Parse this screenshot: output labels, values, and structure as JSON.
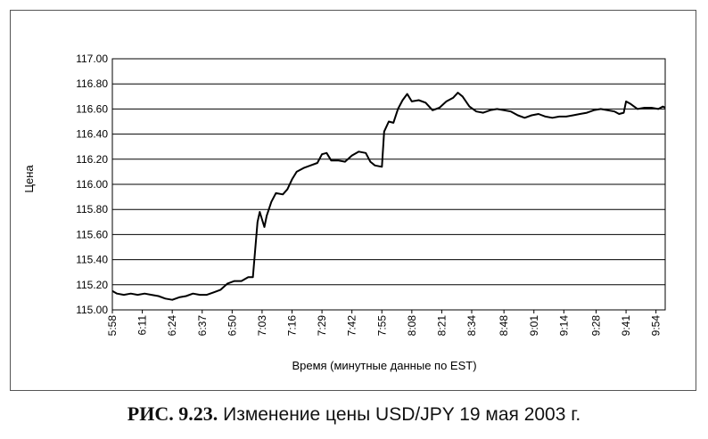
{
  "chart_data": {
    "type": "line",
    "title": "",
    "xlabel": "Время (минутные данные по EST)",
    "ylabel": "Цена",
    "ylim": [
      115.0,
      117.0
    ],
    "xlim": [
      "5:58",
      "9:58"
    ],
    "grid": "horizontal",
    "y_ticks": [
      "115.00",
      "115.20",
      "115.40",
      "115.60",
      "115.80",
      "116.00",
      "116.20",
      "116.40",
      "116.60",
      "116.80",
      "117.00"
    ],
    "x_ticks": [
      "5:58",
      "6:11",
      "6:24",
      "6:37",
      "6:50",
      "7:03",
      "7:16",
      "7:29",
      "7:42",
      "7:55",
      "8:08",
      "8:21",
      "8:34",
      "8:48",
      "9:01",
      "9:14",
      "9:28",
      "9:41",
      "9:54"
    ],
    "series": [
      {
        "color": "#000000",
        "points": [
          [
            "5:58",
            115.15
          ],
          [
            "6:00",
            115.13
          ],
          [
            "6:03",
            115.12
          ],
          [
            "6:06",
            115.13
          ],
          [
            "6:09",
            115.12
          ],
          [
            "6:12",
            115.13
          ],
          [
            "6:15",
            115.12
          ],
          [
            "6:18",
            115.11
          ],
          [
            "6:21",
            115.09
          ],
          [
            "6:24",
            115.08
          ],
          [
            "6:27",
            115.1
          ],
          [
            "6:30",
            115.11
          ],
          [
            "6:33",
            115.13
          ],
          [
            "6:36",
            115.12
          ],
          [
            "6:39",
            115.12
          ],
          [
            "6:42",
            115.14
          ],
          [
            "6:45",
            115.16
          ],
          [
            "6:48",
            115.21
          ],
          [
            "6:51",
            115.23
          ],
          [
            "6:54",
            115.23
          ],
          [
            "6:57",
            115.26
          ],
          [
            "6:59",
            115.26
          ],
          [
            "7:00",
            115.48
          ],
          [
            "7:01",
            115.7
          ],
          [
            "7:02",
            115.78
          ],
          [
            "7:03",
            115.72
          ],
          [
            "7:04",
            115.66
          ],
          [
            "7:05",
            115.75
          ],
          [
            "7:07",
            115.86
          ],
          [
            "7:09",
            115.93
          ],
          [
            "7:12",
            115.92
          ],
          [
            "7:14",
            115.96
          ],
          [
            "7:16",
            116.04
          ],
          [
            "7:18",
            116.1
          ],
          [
            "7:21",
            116.13
          ],
          [
            "7:24",
            116.15
          ],
          [
            "7:27",
            116.17
          ],
          [
            "7:29",
            116.24
          ],
          [
            "7:31",
            116.25
          ],
          [
            "7:33",
            116.19
          ],
          [
            "7:36",
            116.19
          ],
          [
            "7:39",
            116.18
          ],
          [
            "7:42",
            116.23
          ],
          [
            "7:45",
            116.26
          ],
          [
            "7:48",
            116.25
          ],
          [
            "7:50",
            116.18
          ],
          [
            "7:52",
            116.15
          ],
          [
            "7:55",
            116.14
          ],
          [
            "7:56",
            116.42
          ],
          [
            "7:58",
            116.5
          ],
          [
            "8:00",
            116.49
          ],
          [
            "8:02",
            116.6
          ],
          [
            "8:04",
            116.67
          ],
          [
            "8:06",
            116.72
          ],
          [
            "8:08",
            116.66
          ],
          [
            "8:11",
            116.67
          ],
          [
            "8:14",
            116.65
          ],
          [
            "8:17",
            116.59
          ],
          [
            "8:20",
            116.61
          ],
          [
            "8:23",
            116.66
          ],
          [
            "8:26",
            116.69
          ],
          [
            "8:28",
            116.73
          ],
          [
            "8:30",
            116.7
          ],
          [
            "8:33",
            116.62
          ],
          [
            "8:36",
            116.58
          ],
          [
            "8:39",
            116.57
          ],
          [
            "8:42",
            116.59
          ],
          [
            "8:45",
            116.6
          ],
          [
            "8:48",
            116.59
          ],
          [
            "8:51",
            116.58
          ],
          [
            "8:54",
            116.55
          ],
          [
            "8:57",
            116.53
          ],
          [
            "9:00",
            116.55
          ],
          [
            "9:03",
            116.56
          ],
          [
            "9:06",
            116.54
          ],
          [
            "9:09",
            116.53
          ],
          [
            "9:12",
            116.54
          ],
          [
            "9:15",
            116.54
          ],
          [
            "9:18",
            116.55
          ],
          [
            "9:21",
            116.56
          ],
          [
            "9:24",
            116.57
          ],
          [
            "9:27",
            116.59
          ],
          [
            "9:30",
            116.6
          ],
          [
            "9:33",
            116.59
          ],
          [
            "9:36",
            116.58
          ],
          [
            "9:38",
            116.56
          ],
          [
            "9:40",
            116.57
          ],
          [
            "9:41",
            116.66
          ],
          [
            "9:43",
            116.64
          ],
          [
            "9:46",
            116.6
          ],
          [
            "9:49",
            116.61
          ],
          [
            "9:52",
            116.61
          ],
          [
            "9:55",
            116.6
          ],
          [
            "9:57",
            116.62
          ],
          [
            "9:58",
            116.61
          ]
        ]
      }
    ]
  },
  "caption": {
    "figure": "РИС. 9.23.",
    "text": "Изменение цены USD/JPY 19 мая 2003 г."
  }
}
